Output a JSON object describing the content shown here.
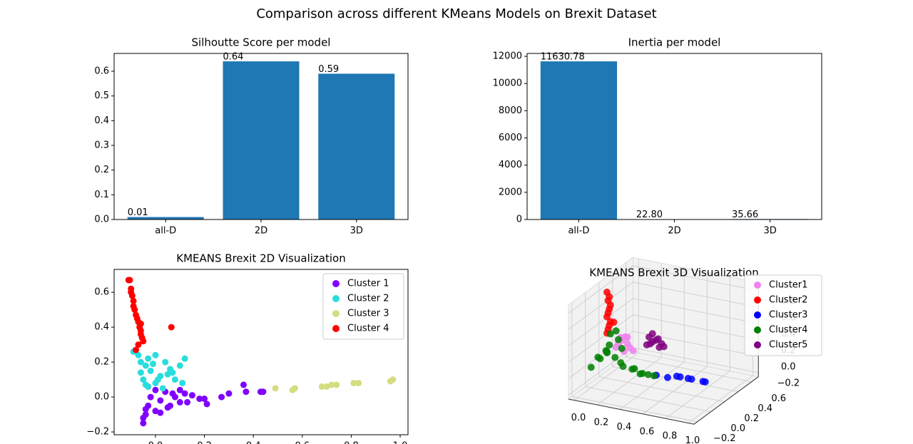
{
  "title": "Comparison across different KMeans Models on Brexit Dataset",
  "chart_data": [
    {
      "type": "bar",
      "title": "Silhoutte Score per model",
      "categories": [
        "all-D",
        "2D",
        "3D"
      ],
      "values": [
        0.01,
        0.64,
        0.59
      ],
      "color": "#1f77b4",
      "ylim": [
        0,
        0.672
      ],
      "yticks": [
        {
          "value": 0,
          "label": "0.0"
        },
        0.1,
        0.2,
        0.3,
        0.4,
        0.5,
        0.6
      ]
    },
    {
      "type": "bar",
      "title": "Inertia per model",
      "categories": [
        "all-D",
        "2D",
        "3D"
      ],
      "values": [
        11630.78,
        22.8,
        35.66
      ],
      "value_labels": [
        "11630.78",
        "22.80",
        "35.66"
      ],
      "color": "#1f77b4",
      "ylim": [
        0,
        12212
      ],
      "yticks": [
        0,
        2000,
        4000,
        6000,
        8000,
        10000,
        12000
      ]
    },
    {
      "type": "scatter",
      "title": "KMEANS Brexit 2D Visualization",
      "legend": "upper right",
      "xlim": [
        -0.169,
        1.032
      ],
      "ylim": [
        -0.216,
        0.731
      ],
      "xticks": [
        {
          "value": 0,
          "label": "0.0"
        },
        0.2,
        0.4,
        0.6,
        0.8,
        {
          "value": 1,
          "label": "1.0"
        }
      ],
      "yticks": [
        {
          "value": -0.2,
          "label": "−0.2"
        },
        {
          "value": 0,
          "label": "0.0"
        },
        0.2,
        0.4,
        0.6
      ],
      "series": [
        {
          "name": "Cluster 1",
          "color": "#8000ff",
          "x": [
            -0.05,
            -0.04,
            -0.03,
            -0.02,
            0.0,
            0.02,
            0.04,
            0.06,
            0.08,
            0.1,
            0.12,
            0.15,
            0.18,
            0.2,
            0.21,
            0.27,
            0.3,
            0.36,
            0.37,
            0.43,
            0.44,
            -0.05,
            0.0,
            0.05,
            0.1,
            -0.03,
            0.02,
            0.07,
            -0.04,
            0.13
          ],
          "y": [
            -0.15,
            -0.1,
            -0.05,
            0.0,
            -0.08,
            -0.02,
            0.03,
            -0.05,
            0.0,
            -0.03,
            0.02,
            0.01,
            -0.01,
            -0.01,
            -0.04,
            0.0,
            0.02,
            0.07,
            0.03,
            0.03,
            0.03,
            -0.12,
            0.04,
            -0.06,
            0.04,
            0.06,
            -0.09,
            0.02,
            -0.07,
            -0.03
          ]
        },
        {
          "name": "Cluster 2",
          "color": "#2adddd",
          "x": [
            -0.09,
            -0.07,
            -0.06,
            -0.04,
            -0.03,
            -0.02,
            0.0,
            0.02,
            0.04,
            0.06,
            0.08,
            0.1,
            0.12,
            -0.05,
            -0.03,
            0.0,
            0.03,
            0.05,
            -0.06,
            -0.01,
            0.01,
            0.07,
            0.11,
            -0.04
          ],
          "y": [
            0.26,
            0.24,
            0.2,
            0.18,
            0.22,
            0.15,
            0.24,
            0.12,
            0.2,
            0.16,
            0.1,
            0.18,
            0.22,
            0.1,
            0.06,
            0.08,
            0.05,
            0.13,
            0.14,
            0.19,
            0.1,
            0.14,
            0.08,
            0.07
          ]
        },
        {
          "name": "Cluster 3",
          "color": "#d4dd80",
          "x": [
            0.49,
            0.56,
            0.57,
            0.68,
            0.7,
            0.72,
            0.74,
            0.81,
            0.83,
            0.96,
            0.97
          ],
          "y": [
            0.05,
            0.04,
            0.05,
            0.06,
            0.06,
            0.07,
            0.07,
            0.08,
            0.08,
            0.09,
            0.1
          ]
        },
        {
          "name": "Cluster 4",
          "color": "#ff0000",
          "x": [
            -0.11,
            -0.105,
            -0.1,
            -0.095,
            -0.09,
            -0.1,
            -0.085,
            -0.08,
            -0.075,
            -0.07,
            -0.065,
            -0.06,
            -0.06,
            -0.055,
            -0.05,
            -0.07,
            -0.08,
            -0.09,
            -0.06,
            0.065
          ],
          "y": [
            0.67,
            0.67,
            0.6,
            0.58,
            0.55,
            0.62,
            0.5,
            0.47,
            0.45,
            0.43,
            0.4,
            0.38,
            0.36,
            0.34,
            0.32,
            0.3,
            0.27,
            0.52,
            0.42,
            0.4
          ]
        }
      ]
    },
    {
      "type": "scatter3d",
      "title": "KMEANS Brexit 3D Visualization",
      "legend": "upper right",
      "xlim": [
        -0.05,
        1.05
      ],
      "ylim": [
        -0.25,
        0.7
      ],
      "zlim": [
        -0.25,
        0.9
      ],
      "xticks": [
        {
          "value": 0,
          "label": "0.0"
        },
        0.2,
        0.4,
        0.6,
        0.8,
        {
          "value": 1,
          "label": "1.0"
        }
      ],
      "yticks": [
        {
          "value": -0.2,
          "label": "−0.2"
        },
        {
          "value": 0,
          "label": "0.0"
        },
        0.2,
        0.4,
        0.6
      ],
      "zticks": [
        {
          "value": -0.2,
          "label": "−0.2"
        },
        {
          "value": 0,
          "label": "0.0"
        },
        0.2,
        0.4,
        0.6,
        0.8
      ],
      "series": [
        {
          "name": "Cluster1",
          "color": "#ee82ee",
          "x": [
            0.1,
            0.12,
            0.15,
            0.18,
            0.2,
            0.22,
            0.25,
            0.14,
            0.17,
            0.2
          ],
          "y": [
            0.2,
            0.2,
            0.2,
            0.2,
            0.2,
            0.2,
            0.2,
            0.2,
            0.2,
            0.2
          ],
          "z": [
            0.15,
            0.2,
            0.25,
            0.3,
            0.22,
            0.18,
            0.15,
            0.28,
            0.12,
            0.3
          ]
        },
        {
          "name": "Cluster2",
          "color": "#ff0000",
          "x": [
            0.02,
            0.03,
            0.04,
            0.05,
            0.02,
            0.03,
            0.04,
            0.05,
            0.03,
            0.04,
            0.02,
            0.08
          ],
          "y": [
            0.2,
            0.2,
            0.2,
            0.2,
            0.2,
            0.2,
            0.2,
            0.2,
            0.2,
            0.2,
            0.2,
            0.2
          ],
          "z": [
            0.3,
            0.35,
            0.4,
            0.45,
            0.5,
            0.55,
            0.6,
            0.65,
            0.7,
            0.75,
            0.8,
            0.45
          ]
        },
        {
          "name": "Cluster3",
          "color": "#0000ff",
          "x": [
            0.6,
            0.7,
            0.75,
            0.78,
            0.85,
            0.88,
            0.98,
            1.0
          ],
          "y": [
            -0.05,
            -0.05,
            0.0,
            0.0,
            0.0,
            0.0,
            0.0,
            0.0
          ],
          "z": [
            0.1,
            0.1,
            0.1,
            0.1,
            0.1,
            0.1,
            0.1,
            0.1
          ]
        },
        {
          "name": "Cluster4",
          "color": "#008000",
          "x": [
            0.0,
            0.02,
            0.05,
            0.08,
            0.1,
            0.12,
            0.15,
            0.2,
            0.25,
            0.3,
            0.35,
            0.4,
            0.45,
            0.5,
            0.55,
            0.05,
            0.1,
            0.03,
            0.07,
            0.15
          ],
          "y": [
            0.0,
            0.1,
            0.15,
            0.1,
            0.05,
            0.2,
            0.1,
            0.1,
            0.05,
            0.1,
            0.05,
            0.05,
            0.0,
            0.0,
            0.0,
            0.2,
            0.2,
            0.05,
            0.15,
            0.2
          ],
          "z": [
            0.0,
            0.05,
            0.1,
            0.15,
            0.2,
            0.25,
            0.1,
            0.05,
            0.05,
            0.0,
            0.05,
            0.0,
            0.05,
            0.05,
            0.05,
            0.3,
            0.35,
            0.1,
            0.2,
            0.15
          ]
        },
        {
          "name": "Cluster5",
          "color": "#800080",
          "x": [
            0.25,
            0.28,
            0.3,
            0.33,
            0.35,
            0.38,
            0.4,
            0.3,
            0.27,
            0.36
          ],
          "y": [
            0.4,
            0.4,
            0.4,
            0.4,
            0.4,
            0.4,
            0.4,
            0.4,
            0.4,
            0.4
          ],
          "z": [
            0.1,
            0.12,
            0.15,
            0.18,
            0.2,
            0.15,
            0.12,
            0.25,
            0.2,
            0.1
          ]
        }
      ]
    }
  ]
}
